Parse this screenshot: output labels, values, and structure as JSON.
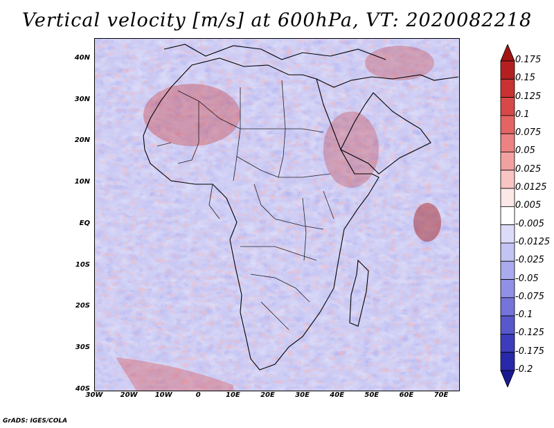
{
  "title": "Vertical velocity [m/s] at 600hPa, VT: 2020082218",
  "footer": "GrADS: IGES/COLA",
  "map": {
    "lat_ticks": [
      {
        "label": "40N",
        "lat": 40
      },
      {
        "label": "30N",
        "lat": 30
      },
      {
        "label": "20N",
        "lat": 20
      },
      {
        "label": "10N",
        "lat": 10
      },
      {
        "label": "EQ",
        "lat": 0
      },
      {
        "label": "10S",
        "lat": -10
      },
      {
        "label": "20S",
        "lat": -20
      },
      {
        "label": "30S",
        "lat": -30
      },
      {
        "label": "40S",
        "lat": -40
      }
    ],
    "lon_ticks": [
      {
        "label": "30W",
        "lon": -30
      },
      {
        "label": "20W",
        "lon": -20
      },
      {
        "label": "10W",
        "lon": -10
      },
      {
        "label": "0",
        "lon": 0
      },
      {
        "label": "10E",
        "lon": 10
      },
      {
        "label": "20E",
        "lon": 20
      },
      {
        "label": "30E",
        "lon": 30
      },
      {
        "label": "40E",
        "lon": 40
      },
      {
        "label": "50E",
        "lon": 50
      },
      {
        "label": "60E",
        "lon": 60
      },
      {
        "label": "70E",
        "lon": 70
      }
    ],
    "lon_range": [
      -30,
      75
    ],
    "lat_range": [
      -40,
      45
    ]
  },
  "colorbar": {
    "labels": [
      "0.175",
      "0.15",
      "0.125",
      "0.1",
      "0.075",
      "0.05",
      "0.025",
      "0.0125",
      "0.005",
      "-0.005",
      "-0.0125",
      "-0.025",
      "-0.05",
      "-0.075",
      "-0.1",
      "-0.125",
      "-0.175",
      "-0.2"
    ],
    "colors": [
      "#a01414",
      "#b42020",
      "#c83232",
      "#d84848",
      "#e46464",
      "#ec8282",
      "#f2a0a0",
      "#f8c4c4",
      "#fde8e8",
      "#ffffff",
      "#dcdcfa",
      "#c4c4f4",
      "#aaaaee",
      "#9090e6",
      "#7474da",
      "#5858cc",
      "#3c3cbc",
      "#2828aa",
      "#1a1a90"
    ]
  }
}
